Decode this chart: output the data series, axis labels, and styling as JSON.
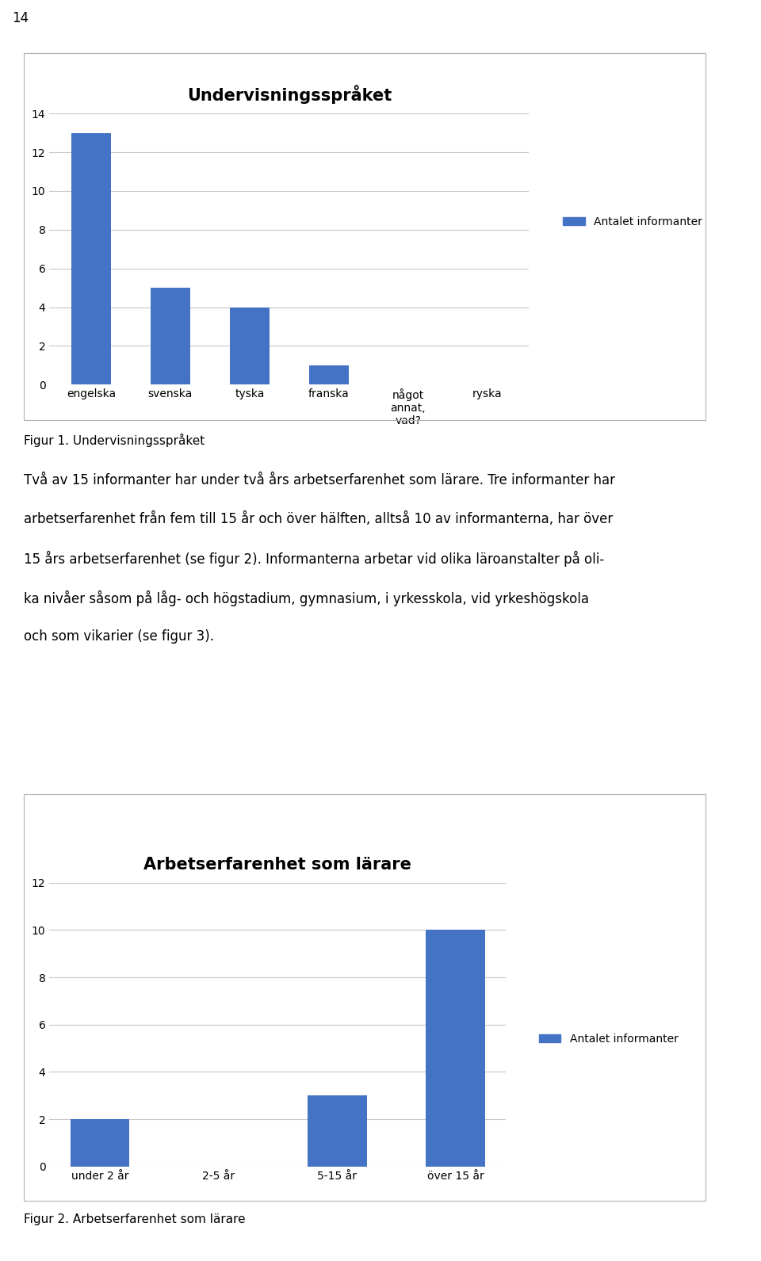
{
  "page_number": "14",
  "chart1": {
    "title": "Undervisningsspråket",
    "categories": [
      "engelska",
      "svenska",
      "tyska",
      "franska",
      "något\nannat,\nvad?",
      "ryska"
    ],
    "values": [
      13,
      5,
      4,
      1,
      0,
      0
    ],
    "bar_color": "#4472C4",
    "legend_label": "Antalet informanter",
    "ylim": [
      0,
      14
    ],
    "yticks": [
      0,
      2,
      4,
      6,
      8,
      10,
      12,
      14
    ],
    "figcaption": "Figur 1. Undervisningsspråket"
  },
  "body_text_lines": [
    "Två av 15 informanter har under två års arbetserfarenhet som lärare. Tre informanter har",
    "arbetserfarenhet från fem till 15 år och över hälften, alltså 10 av informanterna, har över",
    "15 års arbetserfarenhet (se figur 2). Informanterna arbetar vid olika läroanstalter på oli-",
    "ka nivåer såsom på låg- och högstadium, gymnasium, i yrkesskola, vid yrkeshögskola",
    "och som vikarier (se figur 3)."
  ],
  "chart2": {
    "title": "Arbetserfarenhet som lärare",
    "categories": [
      "under 2 år",
      "2-5 år",
      "5-15 år",
      "över 15 år"
    ],
    "values": [
      2,
      0,
      3,
      10
    ],
    "bar_color": "#4472C4",
    "legend_label": "Antalet informanter",
    "ylim": [
      0,
      12
    ],
    "yticks": [
      0,
      2,
      4,
      6,
      8,
      10,
      12
    ],
    "figcaption": "Figur 2. Arbetserfarenhet som lärare"
  },
  "background_color": "#ffffff",
  "text_color": "#000000",
  "page_number_fontsize": 12,
  "title_fontsize": 15,
  "axis_fontsize": 10,
  "legend_fontsize": 10,
  "caption_fontsize": 11,
  "body_fontsize": 12,
  "border_color": "#b0b0b0",
  "grid_color": "#c8c8c8"
}
